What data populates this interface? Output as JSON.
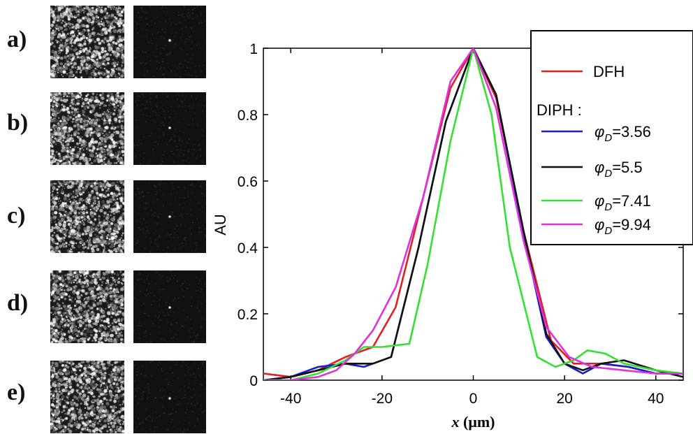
{
  "panels": [
    {
      "label": "a)"
    },
    {
      "label": "b)"
    },
    {
      "label": "c)"
    },
    {
      "label": "d)"
    },
    {
      "label": "e)"
    }
  ],
  "chart_data": {
    "type": "line",
    "xlabel_var": "x",
    "xlabel_unit": "(μm)",
    "ylabel": "AU",
    "xlim": [
      -46,
      46
    ],
    "ylim": [
      0,
      1
    ],
    "xticks": [
      -40,
      -20,
      0,
      20,
      40
    ],
    "yticks": [
      0,
      0.2,
      0.4,
      0.6,
      0.8,
      1
    ],
    "ytick_labels": [
      "0",
      "0.2",
      "0.4",
      "0.6",
      "0.8",
      "1"
    ],
    "grid": false,
    "legend_position": "top-right",
    "legend_heading": "DIPH :",
    "series": [
      {
        "name": "DFH",
        "color": "#e02020",
        "x": [
          -46,
          -40,
          -34,
          -28,
          -22,
          -17,
          -11,
          -5,
          0,
          5,
          11,
          17,
          22,
          28,
          34,
          40,
          46
        ],
        "y": [
          0.02,
          0.01,
          0.03,
          0.07,
          0.1,
          0.22,
          0.55,
          0.88,
          1.0,
          0.85,
          0.45,
          0.12,
          0.05,
          0.05,
          0.04,
          0.02,
          0.02
        ]
      },
      {
        "name": "φD=3.56",
        "sym": "φ",
        "sub": "D",
        "val": "=3.56",
        "color": "#1a1ad0",
        "x": [
          -46,
          -40,
          -34,
          -28,
          -24,
          -22,
          -18,
          -12,
          -6,
          0,
          5,
          11,
          16,
          20,
          24,
          28,
          34,
          40,
          46
        ],
        "y": [
          0.0,
          0.01,
          0.04,
          0.05,
          0.04,
          0.05,
          0.07,
          0.4,
          0.78,
          1.0,
          0.86,
          0.44,
          0.13,
          0.05,
          0.02,
          0.05,
          0.04,
          0.02,
          0.02
        ]
      },
      {
        "name": "φD=5.5",
        "sym": "φ",
        "sub": "D",
        "val": "=5.5",
        "color": "#111111",
        "x": [
          -46,
          -40,
          -34,
          -28,
          -24,
          -22,
          -18,
          -12,
          -6,
          0,
          5,
          11,
          16,
          20,
          24,
          28,
          33,
          40,
          46
        ],
        "y": [
          0.0,
          0.01,
          0.03,
          0.05,
          0.05,
          0.05,
          0.07,
          0.4,
          0.78,
          1.0,
          0.86,
          0.45,
          0.14,
          0.05,
          0.03,
          0.05,
          0.06,
          0.03,
          0.01
        ]
      },
      {
        "name": "φD=7.41",
        "sym": "φ",
        "sub": "D",
        "val": "=7.41",
        "color": "#33e033",
        "x": [
          -46,
          -40,
          -34,
          -28,
          -24,
          -20,
          -14,
          -10,
          -5,
          0,
          4,
          8,
          14,
          18,
          22,
          25,
          29,
          33,
          40,
          46
        ],
        "y": [
          0.0,
          0.0,
          0.02,
          0.06,
          0.1,
          0.1,
          0.11,
          0.35,
          0.72,
          1.0,
          0.8,
          0.4,
          0.07,
          0.04,
          0.06,
          0.09,
          0.08,
          0.05,
          0.03,
          0.02
        ]
      },
      {
        "name": "φD=9.94",
        "sym": "φ",
        "sub": "D",
        "val": "=9.94",
        "color": "#e030e0",
        "x": [
          -46,
          -40,
          -34,
          -30,
          -26,
          -22,
          -17,
          -11,
          -5,
          0,
          5,
          11,
          16,
          21,
          26,
          33,
          40,
          46
        ],
        "y": [
          0.0,
          0.0,
          0.01,
          0.03,
          0.08,
          0.15,
          0.28,
          0.55,
          0.9,
          1.0,
          0.82,
          0.42,
          0.16,
          0.07,
          0.04,
          0.03,
          0.02,
          0.02
        ]
      }
    ]
  }
}
